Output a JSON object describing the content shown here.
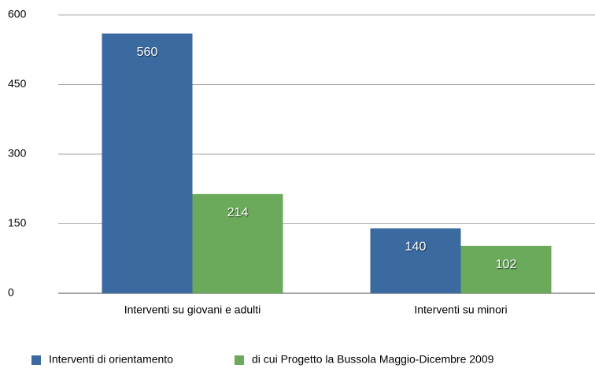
{
  "chart_data": {
    "type": "bar",
    "categories": [
      "Interventi su giovani e adulti",
      "Interventi su minori"
    ],
    "series": [
      {
        "name": "Interventi di orientamento",
        "color": "#3a6aa0",
        "values": [
          560,
          140
        ]
      },
      {
        "name": "di cui Progetto la Bussola Maggio-Dicembre 2009",
        "color": "#6aaa5a",
        "values": [
          214,
          102
        ]
      }
    ],
    "ylim": [
      0,
      600
    ],
    "yticks": [
      0,
      150,
      300,
      450,
      600
    ],
    "grid": true,
    "legend": "bottom"
  }
}
